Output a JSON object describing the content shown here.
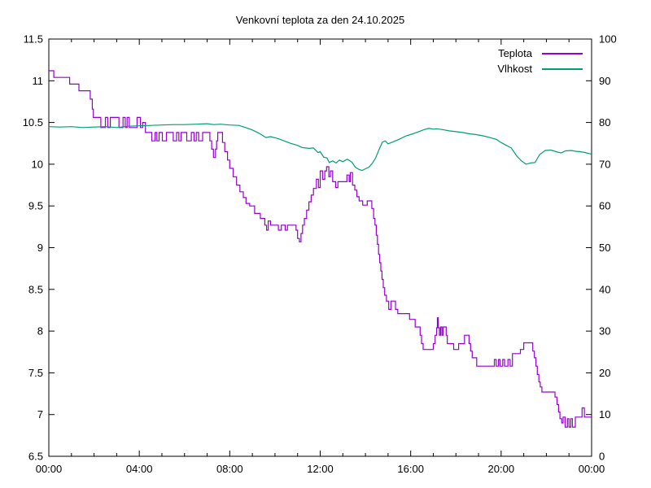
{
  "window": {
    "title": "Venkovní teplota za den 24.10.2025"
  },
  "chart_data": {
    "type": "line",
    "title": "Venkovní teplota za den 24.10.2025",
    "background": "#ffffff",
    "axis_color": "#000000",
    "grid": false,
    "x_axis": {
      "unit": "hours",
      "range": [
        0,
        24
      ],
      "major_ticks": [
        0,
        4,
        8,
        12,
        16,
        20,
        24
      ],
      "major_labels": [
        "00:00",
        "04:00",
        "08:00",
        "12:00",
        "16:00",
        "20:00",
        "00:00"
      ],
      "minor_step": 1
    },
    "y_left": {
      "range": [
        6.5,
        11.5
      ],
      "ticks": [
        6.5,
        7,
        7.5,
        8,
        8.5,
        9,
        9.5,
        10,
        10.5,
        11,
        11.5
      ],
      "labels": [
        "6.5",
        "7",
        "7.5",
        "8",
        "8.5",
        "9",
        "9.5",
        "10",
        "10.5",
        "11",
        "11.5"
      ],
      "series": "Teplota"
    },
    "y_right": {
      "range": [
        0,
        100
      ],
      "ticks": [
        0,
        10,
        20,
        30,
        40,
        50,
        60,
        70,
        80,
        90,
        100
      ],
      "labels": [
        "0",
        "10",
        "20",
        "30",
        "40",
        "50",
        "60",
        "70",
        "80",
        "90",
        "100"
      ],
      "series": "Vlhkost"
    },
    "legend": {
      "position": "top-right",
      "entries": [
        {
          "label": "Teplota",
          "color": "#9400d3"
        },
        {
          "label": "Vlhkost",
          "color": "#009e73"
        }
      ]
    },
    "series": [
      {
        "name": "Teplota",
        "axis": "left",
        "color": "#9400d3",
        "style": "steps",
        "points": [
          [
            0.0,
            11.12
          ],
          [
            0.22,
            11.04
          ],
          [
            0.92,
            10.96
          ],
          [
            1.33,
            10.88
          ],
          [
            1.83,
            10.78
          ],
          [
            1.92,
            10.66
          ],
          [
            1.97,
            10.56
          ],
          [
            2.3,
            10.44
          ],
          [
            2.5,
            10.56
          ],
          [
            2.6,
            10.44
          ],
          [
            2.72,
            10.56
          ],
          [
            3.1,
            10.44
          ],
          [
            3.28,
            10.56
          ],
          [
            3.38,
            10.44
          ],
          [
            3.46,
            10.56
          ],
          [
            3.56,
            10.44
          ],
          [
            3.9,
            10.56
          ],
          [
            4.05,
            10.44
          ],
          [
            4.15,
            10.5
          ],
          [
            4.27,
            10.38
          ],
          [
            4.55,
            10.28
          ],
          [
            4.7,
            10.38
          ],
          [
            4.78,
            10.28
          ],
          [
            4.88,
            10.38
          ],
          [
            5.02,
            10.28
          ],
          [
            5.2,
            10.38
          ],
          [
            5.5,
            10.28
          ],
          [
            5.65,
            10.38
          ],
          [
            5.75,
            10.28
          ],
          [
            5.85,
            10.38
          ],
          [
            6.1,
            10.28
          ],
          [
            6.3,
            10.38
          ],
          [
            6.42,
            10.28
          ],
          [
            6.52,
            10.38
          ],
          [
            6.62,
            10.28
          ],
          [
            6.8,
            10.38
          ],
          [
            7.12,
            10.28
          ],
          [
            7.2,
            10.18
          ],
          [
            7.28,
            10.08
          ],
          [
            7.37,
            10.18
          ],
          [
            7.42,
            10.28
          ],
          [
            7.47,
            10.38
          ],
          [
            7.68,
            10.26
          ],
          [
            7.78,
            10.15
          ],
          [
            7.9,
            10.05
          ],
          [
            8.0,
            9.95
          ],
          [
            8.15,
            9.85
          ],
          [
            8.3,
            9.75
          ],
          [
            8.45,
            9.67
          ],
          [
            8.6,
            9.6
          ],
          [
            8.72,
            9.53
          ],
          [
            8.88,
            9.5
          ],
          [
            9.1,
            9.41
          ],
          [
            9.35,
            9.35
          ],
          [
            9.55,
            9.27
          ],
          [
            9.63,
            9.21
          ],
          [
            9.7,
            9.32
          ],
          [
            9.8,
            9.27
          ],
          [
            10.15,
            9.21
          ],
          [
            10.28,
            9.27
          ],
          [
            10.45,
            9.21
          ],
          [
            10.55,
            9.27
          ],
          [
            10.93,
            9.21
          ],
          [
            11.0,
            9.11
          ],
          [
            11.08,
            9.07
          ],
          [
            11.15,
            9.17
          ],
          [
            11.22,
            9.27
          ],
          [
            11.3,
            9.35
          ],
          [
            11.4,
            9.45
          ],
          [
            11.5,
            9.55
          ],
          [
            11.6,
            9.63
          ],
          [
            11.7,
            9.71
          ],
          [
            11.83,
            9.82
          ],
          [
            11.92,
            9.72
          ],
          [
            12.0,
            9.92
          ],
          [
            12.1,
            9.82
          ],
          [
            12.2,
            9.92
          ],
          [
            12.28,
            9.97
          ],
          [
            12.38,
            9.85
          ],
          [
            12.45,
            9.92
          ],
          [
            12.55,
            9.79
          ],
          [
            12.68,
            9.72
          ],
          [
            12.78,
            9.79
          ],
          [
            13.18,
            9.87
          ],
          [
            13.28,
            9.79
          ],
          [
            13.33,
            9.9
          ],
          [
            13.43,
            9.75
          ],
          [
            13.53,
            9.69
          ],
          [
            13.62,
            9.61
          ],
          [
            13.72,
            9.56
          ],
          [
            13.88,
            9.51
          ],
          [
            14.08,
            9.56
          ],
          [
            14.28,
            9.47
          ],
          [
            14.36,
            9.35
          ],
          [
            14.42,
            9.27
          ],
          [
            14.48,
            9.15
          ],
          [
            14.53,
            9.04
          ],
          [
            14.58,
            8.92
          ],
          [
            14.63,
            8.82
          ],
          [
            14.68,
            8.72
          ],
          [
            14.73,
            8.62
          ],
          [
            14.79,
            8.52
          ],
          [
            14.85,
            8.43
          ],
          [
            14.93,
            8.36
          ],
          [
            15.03,
            8.26
          ],
          [
            15.13,
            8.36
          ],
          [
            15.33,
            8.26
          ],
          [
            15.43,
            8.21
          ],
          [
            15.95,
            8.14
          ],
          [
            16.2,
            8.05
          ],
          [
            16.42,
            7.95
          ],
          [
            16.48,
            7.85
          ],
          [
            16.55,
            7.78
          ],
          [
            17.0,
            7.85
          ],
          [
            17.08,
            7.95
          ],
          [
            17.15,
            8.04
          ],
          [
            17.18,
            8.16
          ],
          [
            17.22,
            8.04
          ],
          [
            17.27,
            7.95
          ],
          [
            17.32,
            8.05
          ],
          [
            17.38,
            7.95
          ],
          [
            17.43,
            8.05
          ],
          [
            17.57,
            7.95
          ],
          [
            17.62,
            7.85
          ],
          [
            17.9,
            7.78
          ],
          [
            18.12,
            7.85
          ],
          [
            18.38,
            7.95
          ],
          [
            18.58,
            7.85
          ],
          [
            18.65,
            7.76
          ],
          [
            18.72,
            7.68
          ],
          [
            18.92,
            7.58
          ],
          [
            19.7,
            7.66
          ],
          [
            19.78,
            7.58
          ],
          [
            19.88,
            7.66
          ],
          [
            19.95,
            7.58
          ],
          [
            20.07,
            7.66
          ],
          [
            20.15,
            7.58
          ],
          [
            20.3,
            7.66
          ],
          [
            20.4,
            7.58
          ],
          [
            20.5,
            7.73
          ],
          [
            20.85,
            7.78
          ],
          [
            21.0,
            7.86
          ],
          [
            21.4,
            7.76
          ],
          [
            21.47,
            7.68
          ],
          [
            21.54,
            7.58
          ],
          [
            21.6,
            7.48
          ],
          [
            21.67,
            7.39
          ],
          [
            21.73,
            7.33
          ],
          [
            21.8,
            7.27
          ],
          [
            22.38,
            7.21
          ],
          [
            22.47,
            7.12
          ],
          [
            22.54,
            7.03
          ],
          [
            22.6,
            6.95
          ],
          [
            22.68,
            6.9
          ],
          [
            22.74,
            6.97
          ],
          [
            22.83,
            6.85
          ],
          [
            22.93,
            6.95
          ],
          [
            23.0,
            6.85
          ],
          [
            23.08,
            6.95
          ],
          [
            23.15,
            6.85
          ],
          [
            23.28,
            6.97
          ],
          [
            23.58,
            7.08
          ],
          [
            23.68,
            6.97
          ],
          [
            24.0,
            6.97
          ]
        ]
      },
      {
        "name": "Vlhkost",
        "axis": "right",
        "color": "#009e73",
        "style": "linear",
        "points": [
          [
            0,
            79.0
          ],
          [
            0.5,
            78.9
          ],
          [
            1,
            79.0
          ],
          [
            1.5,
            78.8
          ],
          [
            2,
            78.9
          ],
          [
            2.5,
            79.0
          ],
          [
            3,
            78.8
          ],
          [
            3.5,
            79.1
          ],
          [
            4,
            79.2
          ],
          [
            4.5,
            79.3
          ],
          [
            5,
            79.4
          ],
          [
            5.5,
            79.5
          ],
          [
            6,
            79.5
          ],
          [
            6.5,
            79.6
          ],
          [
            7,
            79.7
          ],
          [
            7.3,
            79.5
          ],
          [
            7.6,
            79.6
          ],
          [
            8,
            79.4
          ],
          [
            8.4,
            79.3
          ],
          [
            8.7,
            78.8
          ],
          [
            9,
            78.2
          ],
          [
            9.3,
            77.4
          ],
          [
            9.6,
            76.4
          ],
          [
            9.8,
            76.6
          ],
          [
            10.1,
            76.2
          ],
          [
            10.4,
            75.6
          ],
          [
            10.7,
            75.0
          ],
          [
            11.0,
            74.5
          ],
          [
            11.2,
            74.0
          ],
          [
            11.5,
            73.8
          ],
          [
            11.7,
            73.9
          ],
          [
            11.9,
            72.8
          ],
          [
            12.0,
            73.0
          ],
          [
            12.15,
            71.7
          ],
          [
            12.3,
            71.5
          ],
          [
            12.4,
            70.4
          ],
          [
            12.55,
            70.8
          ],
          [
            12.7,
            70.3
          ],
          [
            12.85,
            71.0
          ],
          [
            13.0,
            70.6
          ],
          [
            13.2,
            71.2
          ],
          [
            13.4,
            70.5
          ],
          [
            13.55,
            69.3
          ],
          [
            13.7,
            68.8
          ],
          [
            13.85,
            68.5
          ],
          [
            14.0,
            68.9
          ],
          [
            14.15,
            69.3
          ],
          [
            14.3,
            70.2
          ],
          [
            14.45,
            71.5
          ],
          [
            14.6,
            73.5
          ],
          [
            14.75,
            75.3
          ],
          [
            14.87,
            75.6
          ],
          [
            15.0,
            74.9
          ],
          [
            15.2,
            75.3
          ],
          [
            15.5,
            76.0
          ],
          [
            15.8,
            76.8
          ],
          [
            16.1,
            77.3
          ],
          [
            16.4,
            77.9
          ],
          [
            16.6,
            78.3
          ],
          [
            16.8,
            78.6
          ],
          [
            17.0,
            78.4
          ],
          [
            17.15,
            78.5
          ],
          [
            17.4,
            78.3
          ],
          [
            17.7,
            78.0
          ],
          [
            18.0,
            77.8
          ],
          [
            18.3,
            77.6
          ],
          [
            18.6,
            77.3
          ],
          [
            18.9,
            77.1
          ],
          [
            19.2,
            76.8
          ],
          [
            19.5,
            76.4
          ],
          [
            19.8,
            75.9
          ],
          [
            20.0,
            75.2
          ],
          [
            20.2,
            74.6
          ],
          [
            20.45,
            73.9
          ],
          [
            20.7,
            71.9
          ],
          [
            20.9,
            70.8
          ],
          [
            21.1,
            70.0
          ],
          [
            21.3,
            70.3
          ],
          [
            21.5,
            70.4
          ],
          [
            21.7,
            72.3
          ],
          [
            21.95,
            73.3
          ],
          [
            22.2,
            73.4
          ],
          [
            22.5,
            72.9
          ],
          [
            22.65,
            72.7
          ],
          [
            22.85,
            73.2
          ],
          [
            23.1,
            73.3
          ],
          [
            23.3,
            73.1
          ],
          [
            23.5,
            73.0
          ],
          [
            23.7,
            72.8
          ],
          [
            24.0,
            72.4
          ]
        ]
      }
    ]
  }
}
